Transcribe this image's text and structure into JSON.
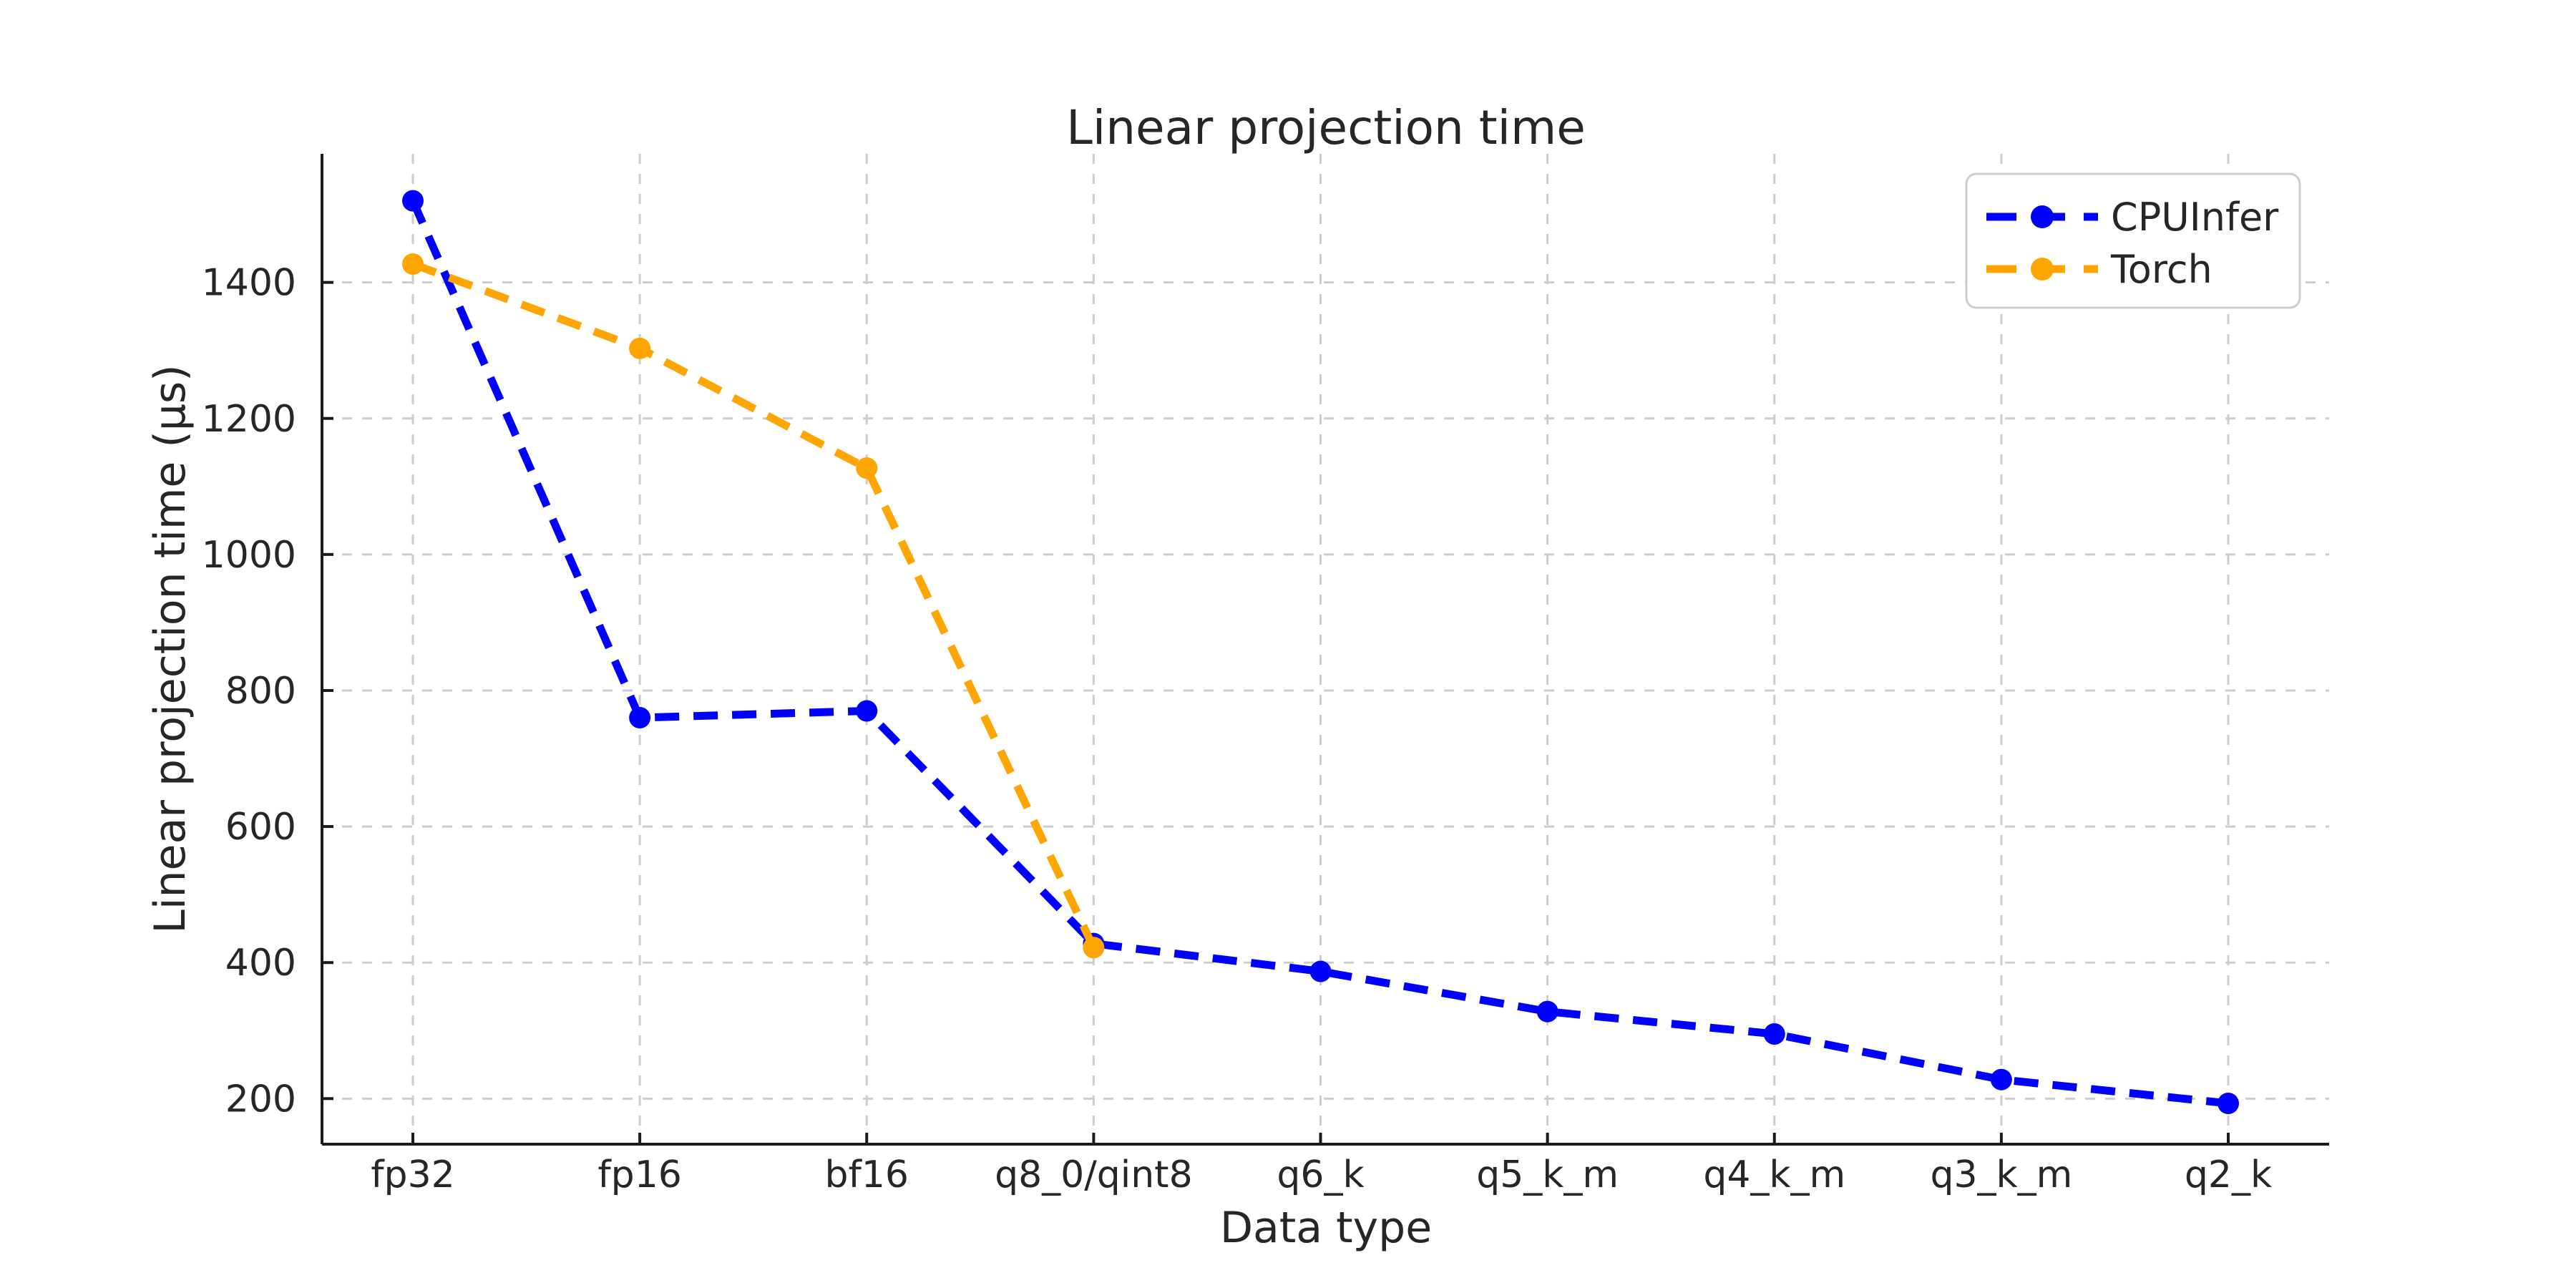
{
  "window": {
    "background": "#ffffff"
  },
  "chart_data": {
    "type": "line",
    "title": "Linear projection time",
    "xlabel": "Data type",
    "ylabel": "Linear projection time (μs)",
    "categories": [
      "fp32",
      "fp16",
      "bf16",
      "q8_0/qint8",
      "q6_k",
      "q5_k_m",
      "q4_k_m",
      "q3_k_m",
      "q2_k"
    ],
    "series": [
      {
        "name": "CPUInfer",
        "color": "#0000ff",
        "linestyle": "dashed",
        "marker": "circle",
        "values": [
          1520,
          760,
          770,
          428,
          387,
          328,
          295,
          228,
          193
        ]
      },
      {
        "name": "Torch",
        "color": "#ffa500",
        "linestyle": "dashed",
        "marker": "circle",
        "values": [
          1427,
          1303,
          1127,
          422
        ]
      }
    ],
    "yticks": [
      200,
      400,
      600,
      800,
      1000,
      1200,
      1400
    ],
    "ylim": [
      133,
      1589
    ],
    "grid": true,
    "grid_color": "#cccccc",
    "spine_color": "#1a1a1a",
    "text_color": "#262626",
    "legend_position": "upper right",
    "legend_border_color": "#cccccc",
    "legend_background": "#ffffff"
  }
}
